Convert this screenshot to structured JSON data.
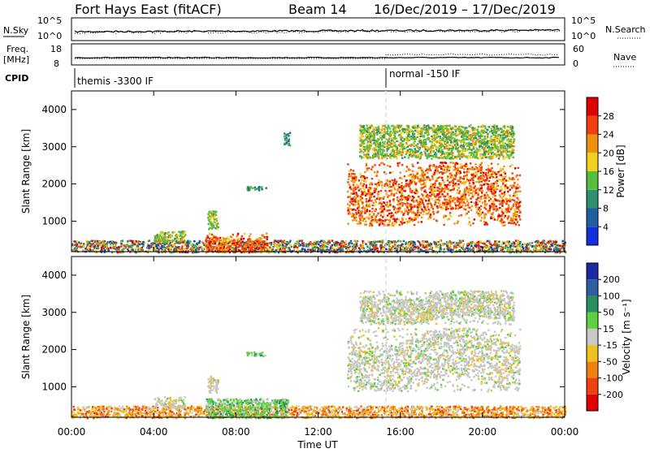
{
  "header": {
    "title": "Fort Hays East (fitACF)",
    "beam": "Beam 14",
    "date_range": "16/Dec/2019 – 17/Dec/2019"
  },
  "strips": {
    "nsky_label": "N.Sky",
    "nsky_top": "10^5",
    "nsky_bottom": "10^0",
    "nsearch_top": "10^5",
    "nsearch_bottom": "10^0",
    "nsearch_label": "N.Search",
    "freq_label": "Freq.",
    "freq_unit": "[MHz]",
    "freq_top": "18",
    "freq_bottom": "8",
    "nave_top": "60",
    "nave_bottom": "0",
    "nave_label": "Nave",
    "cpid_label": "CPID",
    "cpid_1": "themis -3300 IF",
    "cpid_2": "normal -150 IF"
  },
  "chart_data": [
    {
      "type": "heatmap",
      "quantity": "power",
      "ylabel": "Slant Range [km]",
      "colorbar_label": "Power [dB]",
      "colorbar_ticks": [
        "4",
        "8",
        "12",
        "16",
        "20",
        "24",
        "28"
      ],
      "colorbar_colors": [
        "#1030e0",
        "#2060a0",
        "#2f8f6e",
        "#55c040",
        "#f0d020",
        "#f09010",
        "#f04010",
        "#e00000"
      ],
      "y_ticks": [
        "1000",
        "2000",
        "3000",
        "4000"
      ],
      "ylim": [
        180,
        4500
      ],
      "regions": [
        {
          "t_start": 13.4,
          "t_end": 21.8,
          "range_low": 900,
          "range_high": 2600,
          "level": "high"
        },
        {
          "t_start": 14.0,
          "t_end": 21.5,
          "range_low": 2700,
          "range_high": 3600,
          "level": "mid"
        },
        {
          "t_start": 0.0,
          "t_end": 24.0,
          "range_low": 180,
          "range_high": 500,
          "level": "mixed"
        },
        {
          "t_start": 6.5,
          "t_end": 9.5,
          "range_low": 180,
          "range_high": 700,
          "level": "high"
        },
        {
          "t_start": 4.0,
          "t_end": 5.5,
          "range_low": 450,
          "range_high": 750,
          "level": "mid"
        },
        {
          "t_start": 6.6,
          "t_end": 7.1,
          "range_low": 800,
          "range_high": 1300,
          "level": "mid"
        },
        {
          "t_start": 8.5,
          "t_end": 9.5,
          "range_low": 1850,
          "range_high": 1950,
          "level": "low"
        },
        {
          "t_start": 10.3,
          "t_end": 10.6,
          "range_low": 3050,
          "range_high": 3400,
          "level": "low"
        }
      ]
    },
    {
      "type": "heatmap",
      "quantity": "velocity",
      "ylabel": "Slant Range [km]",
      "colorbar_label": "Velocity [m s⁻¹]",
      "colorbar_ticks": [
        "-200",
        "-100",
        "-50",
        "-15",
        "15",
        "50",
        "100",
        "200"
      ],
      "colorbar_colors": [
        "#e00000",
        "#f04010",
        "#f08010",
        "#f0c020",
        "#c8c8c8",
        "#60d040",
        "#2a8f60",
        "#2f5fa0",
        "#1a2aa0"
      ],
      "y_ticks": [
        "1000",
        "2000",
        "3000",
        "4000"
      ],
      "ylim": [
        180,
        4500
      ],
      "regions": [
        {
          "t_start": 13.4,
          "t_end": 21.8,
          "range_low": 900,
          "range_high": 2600,
          "level": "ground"
        },
        {
          "t_start": 14.0,
          "t_end": 21.5,
          "range_low": 2700,
          "range_high": 3600,
          "level": "ground"
        },
        {
          "t_start": 0.0,
          "t_end": 24.0,
          "range_low": 180,
          "range_high": 500,
          "level": "negative"
        },
        {
          "t_start": 6.5,
          "t_end": 10.5,
          "range_low": 180,
          "range_high": 700,
          "level": "positive"
        },
        {
          "t_start": 4.0,
          "t_end": 5.5,
          "range_low": 450,
          "range_high": 750,
          "level": "ground"
        },
        {
          "t_start": 6.6,
          "t_end": 7.1,
          "range_low": 800,
          "range_high": 1300,
          "level": "ground"
        },
        {
          "t_start": 8.5,
          "t_end": 9.5,
          "range_low": 1850,
          "range_high": 1950,
          "level": "positive"
        }
      ]
    }
  ],
  "xaxis": {
    "label": "Time UT",
    "ticks": [
      "00:00",
      "04:00",
      "08:00",
      "12:00",
      "16:00",
      "20:00",
      "00:00"
    ],
    "xlim": [
      0,
      24
    ]
  }
}
